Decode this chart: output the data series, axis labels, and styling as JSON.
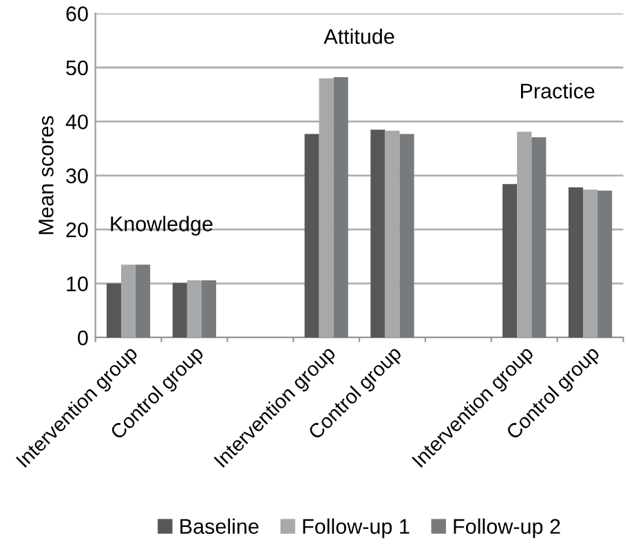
{
  "chart_data": {
    "type": "bar",
    "ylabel": "Mean scores",
    "categories": [
      "Intervention group",
      "Control group",
      null,
      "Intervention group",
      "Control group",
      null,
      "Intervention group",
      "Control group"
    ],
    "series": [
      {
        "name": "Baseline",
        "color": "#555759",
        "values": [
          10,
          10.1,
          null,
          37.7,
          38.5,
          null,
          28.4,
          27.8
        ]
      },
      {
        "name": "Follow-up 1",
        "color": "#a6a8a9",
        "values": [
          13.5,
          10.6,
          null,
          48,
          38.3,
          null,
          38.1,
          27.4
        ]
      },
      {
        "name": "Follow-up 2",
        "color": "#787b7d",
        "values": [
          13.5,
          10.6,
          null,
          48.2,
          37.7,
          null,
          37.1,
          27.2
        ]
      }
    ],
    "annotations": [
      "Knowledge",
      "Attitude",
      "Practice"
    ],
    "ylim": [
      0,
      60
    ],
    "yticks": [
      0,
      10,
      20,
      30,
      40,
      50,
      60
    ],
    "grid": "y",
    "legend": "bottom"
  }
}
